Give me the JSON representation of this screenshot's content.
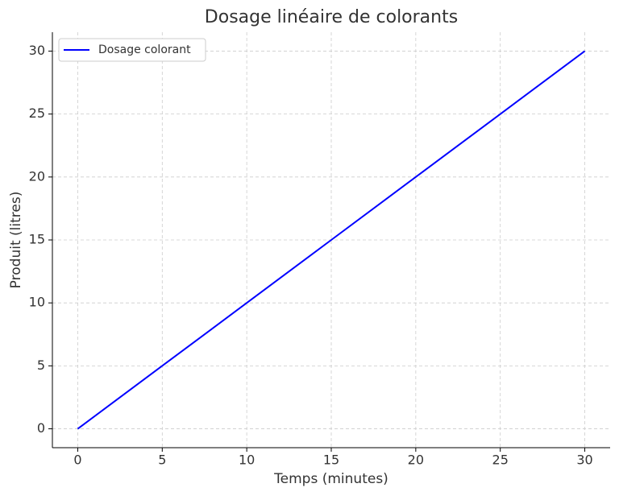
{
  "chart_data": {
    "type": "line",
    "title": "Dosage linéaire de colorants",
    "xlabel": "Temps (minutes)",
    "ylabel": "Produit (litres)",
    "x": [
      0,
      5,
      10,
      15,
      20,
      25,
      30
    ],
    "series": [
      {
        "name": "Dosage colorant",
        "color": "#0000ff",
        "values": [
          0,
          5,
          10,
          15,
          20,
          25,
          30
        ]
      }
    ],
    "xlim": [
      -1.5,
      31.5
    ],
    "ylim": [
      -1.5,
      31.5
    ],
    "xticks": [
      0,
      5,
      10,
      15,
      20,
      25,
      30
    ],
    "yticks": [
      0,
      5,
      10,
      15,
      20,
      25,
      30
    ],
    "grid": true,
    "legend": "upper-left"
  }
}
